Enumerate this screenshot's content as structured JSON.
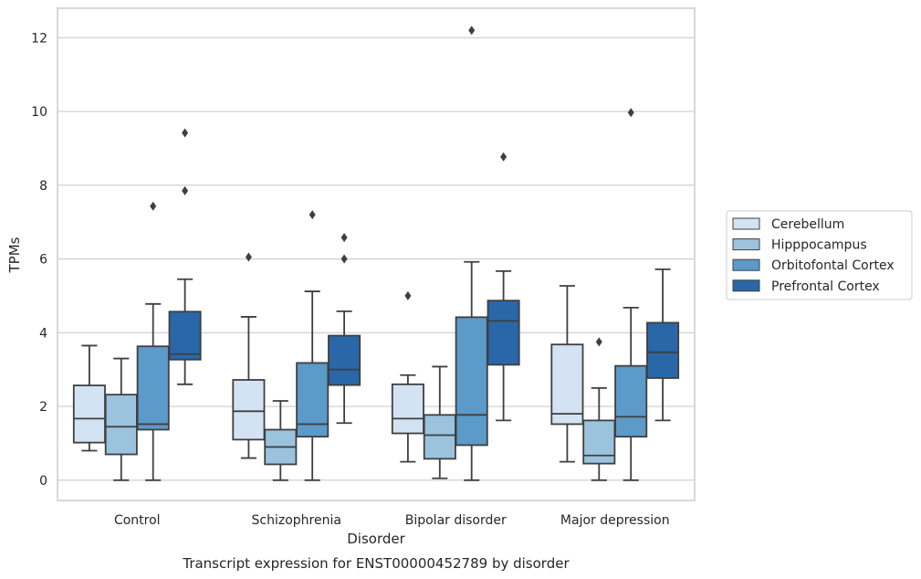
{
  "chart_data": {
    "type": "box",
    "caption": "Transcript expression for ENST00000452789 by disorder",
    "xlabel": "Disorder",
    "ylabel": "TPMs",
    "ylim": [
      -0.55,
      12.8
    ],
    "yticks": [
      0,
      2,
      4,
      6,
      8,
      10,
      12
    ],
    "grid": "horizontal",
    "legend_position": "right",
    "categories": [
      "Control",
      "Schizophrenia",
      "Bipolar disorder",
      "Major depression"
    ],
    "series": [
      {
        "name": "Cerebellum",
        "color": "#d3e3f3",
        "boxes": [
          {
            "whisker_low": 0.8,
            "q1": 1.02,
            "median": 1.67,
            "q3": 2.57,
            "whisker_high": 3.65,
            "outliers": []
          },
          {
            "whisker_low": 0.6,
            "q1": 1.1,
            "median": 1.87,
            "q3": 2.72,
            "whisker_high": 4.43,
            "outliers": [
              6.05
            ]
          },
          {
            "whisker_low": 0.5,
            "q1": 1.27,
            "median": 1.67,
            "q3": 2.6,
            "whisker_high": 2.85,
            "outliers": [
              5.0
            ]
          },
          {
            "whisker_low": 0.5,
            "q1": 1.52,
            "median": 1.8,
            "q3": 3.68,
            "whisker_high": 5.27,
            "outliers": []
          }
        ]
      },
      {
        "name": "Hipppocampus",
        "color": "#9cc3de",
        "boxes": [
          {
            "whisker_low": 0.0,
            "q1": 0.7,
            "median": 1.45,
            "q3": 2.32,
            "whisker_high": 3.3,
            "outliers": []
          },
          {
            "whisker_low": 0.0,
            "q1": 0.43,
            "median": 0.9,
            "q3": 1.37,
            "whisker_high": 2.15,
            "outliers": []
          },
          {
            "whisker_low": 0.05,
            "q1": 0.58,
            "median": 1.22,
            "q3": 1.77,
            "whisker_high": 3.08,
            "outliers": []
          },
          {
            "whisker_low": 0.0,
            "q1": 0.45,
            "median": 0.67,
            "q3": 1.62,
            "whisker_high": 2.5,
            "outliers": [
              3.75
            ]
          }
        ]
      },
      {
        "name": "Orbitofontal Cortex",
        "color": "#5b9ac9",
        "boxes": [
          {
            "whisker_low": 0.0,
            "q1": 1.37,
            "median": 1.52,
            "q3": 3.63,
            "whisker_high": 4.78,
            "outliers": [
              7.43
            ]
          },
          {
            "whisker_low": 0.0,
            "q1": 1.18,
            "median": 1.52,
            "q3": 3.18,
            "whisker_high": 5.12,
            "outliers": [
              7.2
            ]
          },
          {
            "whisker_low": 0.0,
            "q1": 0.95,
            "median": 1.77,
            "q3": 4.42,
            "whisker_high": 5.92,
            "outliers": [
              12.2
            ]
          },
          {
            "whisker_low": 0.0,
            "q1": 1.18,
            "median": 1.72,
            "q3": 3.1,
            "whisker_high": 4.68,
            "outliers": [
              9.97
            ]
          }
        ]
      },
      {
        "name": "Prefrontal Cortex",
        "color": "#2a67a8",
        "boxes": [
          {
            "whisker_low": 2.6,
            "q1": 3.27,
            "median": 3.42,
            "q3": 4.57,
            "whisker_high": 5.45,
            "outliers": [
              7.85,
              9.42
            ]
          },
          {
            "whisker_low": 1.55,
            "q1": 2.58,
            "median": 3.0,
            "q3": 3.92,
            "whisker_high": 4.58,
            "outliers": [
              6.0,
              6.58
            ]
          },
          {
            "whisker_low": 1.62,
            "q1": 3.13,
            "median": 4.32,
            "q3": 4.87,
            "whisker_high": 5.67,
            "outliers": [
              8.77
            ]
          },
          {
            "whisker_low": 1.62,
            "q1": 2.77,
            "median": 3.47,
            "q3": 4.27,
            "whisker_high": 5.72,
            "outliers": []
          }
        ]
      }
    ]
  }
}
